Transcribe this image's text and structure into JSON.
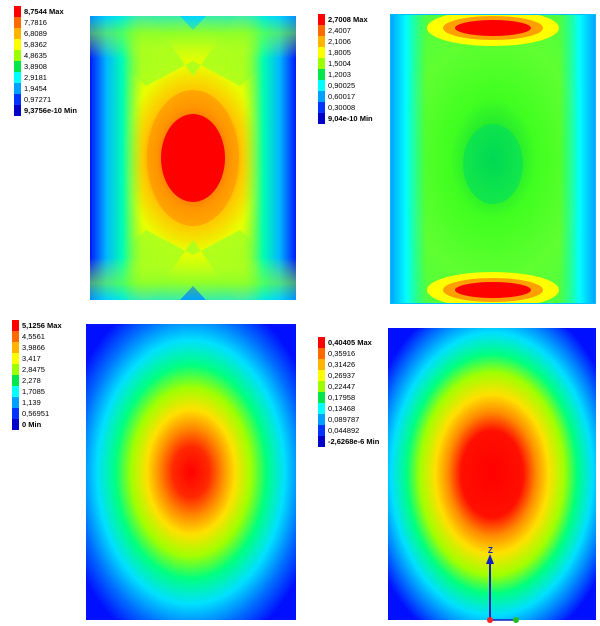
{
  "panels": [
    {
      "id": "top-left",
      "legend": [
        "8,7544 Max",
        "7,7816",
        "6,8089",
        "5,8362",
        "4,8635",
        "3,8908",
        "2,9181",
        "1,9454",
        "0,97271",
        "9,3756e-10 Min"
      ],
      "legend_colors": [
        "#ff0000",
        "#ff6a00",
        "#ffb400",
        "#ffff00",
        "#9cff00",
        "#00e64b",
        "#00ffff",
        "#00a0ff",
        "#0033ff",
        "#0000c8"
      ]
    },
    {
      "id": "top-right",
      "legend": [
        "2,7008 Max",
        "2,4007",
        "2,1006",
        "1,8005",
        "1,5004",
        "1,2003",
        "0,90025",
        "0,60017",
        "0,30008",
        "9,04e-10 Min"
      ],
      "legend_colors": [
        "#ff0000",
        "#ff6a00",
        "#ffb400",
        "#ffff00",
        "#9cff00",
        "#00e64b",
        "#00ffff",
        "#00a0ff",
        "#0033ff",
        "#0000c8"
      ]
    },
    {
      "id": "bottom-left",
      "legend": [
        "5,1256 Max",
        "4,5561",
        "3,9866",
        "3,417",
        "2,8475",
        "2,278",
        "1,7085",
        "1,139",
        "0,56951",
        "0 Min"
      ],
      "legend_colors": [
        "#ff0000",
        "#ff6a00",
        "#ffb400",
        "#ffff00",
        "#9cff00",
        "#00e64b",
        "#00ffff",
        "#00a0ff",
        "#0033ff",
        "#0000c8"
      ]
    },
    {
      "id": "bottom-right",
      "legend": [
        "0,40405 Max",
        "0,35916",
        "0,31426",
        "0,26937",
        "0,22447",
        "0,17958",
        "0,13468",
        "0,089787",
        "0,044892",
        "-2,6268e-6 Min"
      ],
      "legend_colors": [
        "#ff0000",
        "#ff6a00",
        "#ffb400",
        "#ffff00",
        "#9cff00",
        "#00e64b",
        "#00ffff",
        "#00a0ff",
        "#0033ff",
        "#0000c8"
      ]
    }
  ],
  "axis": {
    "z_label": "Z"
  }
}
